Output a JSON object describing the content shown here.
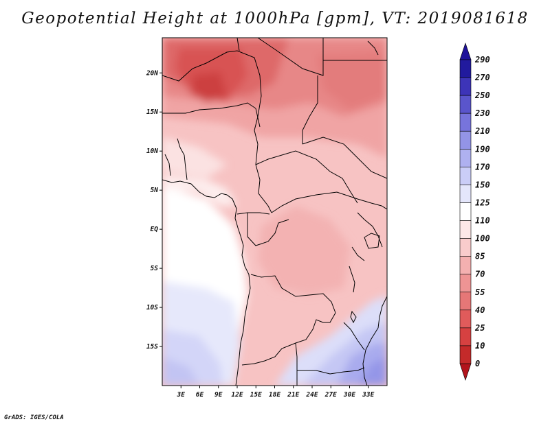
{
  "title": "Geopotential Height at 1000hPa [gpm], VT: 2019081618",
  "credit": "GrADS: IGES/COLA",
  "map": {
    "variable": "geopotential height",
    "level": "1000hPa",
    "units": "gpm",
    "lon_range": [
      0,
      36
    ],
    "lat_range": [
      -20,
      24.5
    ],
    "x_ticks": [
      "3E",
      "6E",
      "9E",
      "12E",
      "15E",
      "18E",
      "21E",
      "24E",
      "27E",
      "30E",
      "33E"
    ],
    "x_tick_values": [
      3,
      6,
      9,
      12,
      15,
      18,
      21,
      24,
      27,
      30,
      33
    ],
    "y_ticks": [
      "20N",
      "15N",
      "10N",
      "5N",
      "EQ",
      "5S",
      "10S",
      "15S"
    ],
    "y_tick_values": [
      20,
      15,
      10,
      5,
      0,
      -5,
      -10,
      -15
    ],
    "field_summary": "Lowest heights (25-55 gpm) over the central Sahara/Sahel in the north; 70-100 gpm across West-Central Africa and the Congo basin; 110-125 gpm along the Atlantic coast and southwest; 125-170 gpm over southern Africa in the southeast."
  },
  "colorbar": {
    "labels": [
      "290",
      "270",
      "250",
      "230",
      "210",
      "190",
      "170",
      "150",
      "125",
      "110",
      "100",
      "85",
      "70",
      "55",
      "40",
      "25",
      "10",
      "0"
    ],
    "levels": [
      0,
      10,
      25,
      40,
      55,
      70,
      85,
      100,
      110,
      125,
      150,
      170,
      190,
      210,
      230,
      250,
      270,
      290
    ],
    "colors": [
      "#b2141c",
      "#c42a2a",
      "#d64141",
      "#e05b5b",
      "#e67777",
      "#ee9494",
      "#f4b0b0",
      "#f9cccc",
      "#fde8e8",
      "#ffffff",
      "#e4e6fb",
      "#cacdf7",
      "#afb1f0",
      "#9394e6",
      "#7774dc",
      "#5a55cc",
      "#3d34b8",
      "#211a9e",
      "#1f129a"
    ],
    "colors_order": "low to high"
  }
}
